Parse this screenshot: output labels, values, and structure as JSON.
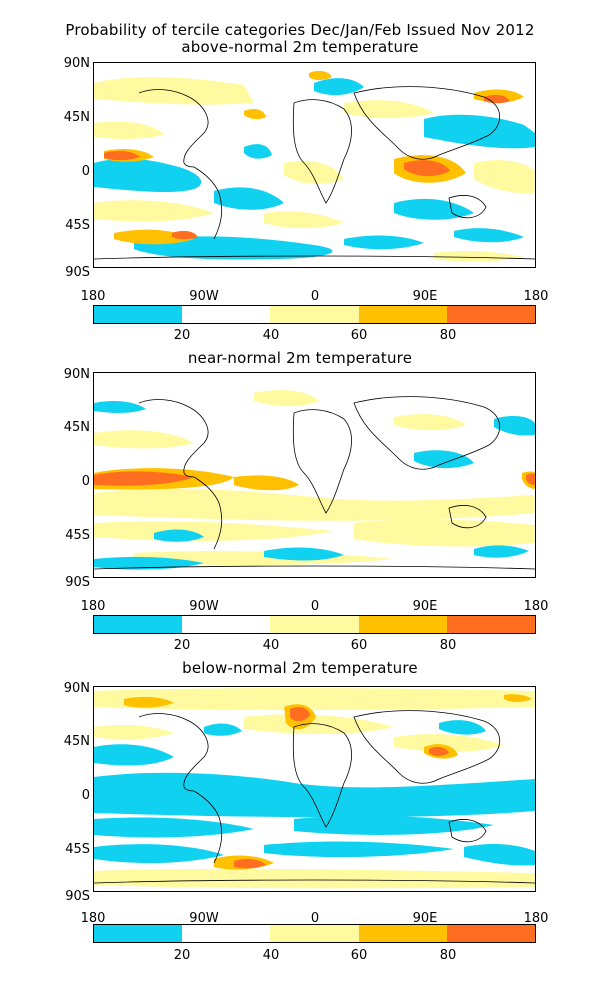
{
  "title_line1": "Probability of tercile categories Dec/Jan/Feb Issued Nov 2012",
  "panels": [
    {
      "title": "above-normal 2m temperature"
    },
    {
      "title": "near-normal 2m temperature"
    },
    {
      "title": "below-normal 2m temperature"
    }
  ],
  "axes": {
    "lat_labels": [
      "90N",
      "45N",
      "0",
      "45S",
      "90S"
    ],
    "lon_labels": [
      "180",
      "90W",
      "0",
      "90E",
      "180"
    ]
  },
  "colorbar": {
    "labels": [
      "20",
      "40",
      "60",
      "80"
    ],
    "colors": [
      "#10d2f0",
      "#ffffff",
      "#fffaa0",
      "#ffc000",
      "#ff6e20"
    ]
  },
  "palette": {
    "cyan": "#10d2f0",
    "pale_yellow": "#fffaa0",
    "orange": "#ffc000",
    "red_orange": "#ff6e20",
    "coast": "#000000"
  }
}
